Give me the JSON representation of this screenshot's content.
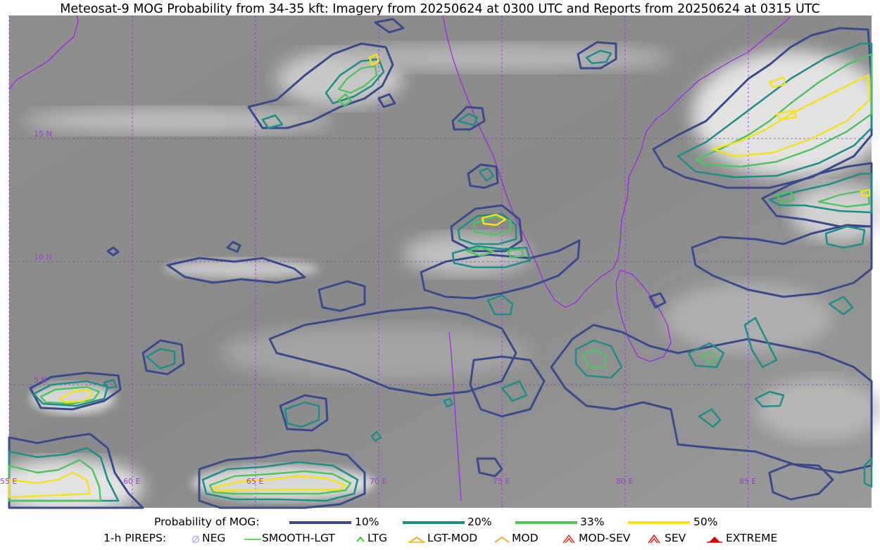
{
  "title": "Meteosat-9 MOG Probability from 34-35 kft: Imagery from 20250624 at 0300 UTC and Reports from 20250624 at 0315 UTC",
  "map": {
    "lat_labels": [
      "15 N",
      "10 N",
      "5 N"
    ],
    "lon_labels": [
      "55 E",
      "60 E",
      "65 E",
      "70 E",
      "75 E",
      "80 E",
      "85 E"
    ],
    "gridline_color": "#9b30d9",
    "coastline_color": "#a020f0"
  },
  "legend": {
    "probability_label": "Probability of MOG:",
    "levels": [
      {
        "label": "10%",
        "color": "#3b4a8c"
      },
      {
        "label": "20%",
        "color": "#1f8f88"
      },
      {
        "label": "33%",
        "color": "#4ec45f"
      },
      {
        "label": "50%",
        "color": "#f5e21a"
      }
    ],
    "pireps_label": "1-h PIREPS:",
    "pireps": [
      {
        "label": "NEG",
        "icon": "neg-icon",
        "color": "#b9b4f0"
      },
      {
        "label": "SMOOTH-LGT",
        "icon": "smooth-lgt-icon",
        "color": "#33cc33"
      },
      {
        "label": "LTG",
        "icon": "ltg-icon",
        "color": "#22cc22"
      },
      {
        "label": "LGT-MOD",
        "icon": "lgt-mod-icon",
        "color": "#f0b000"
      },
      {
        "label": "MOD",
        "icon": "mod-icon",
        "color": "#f5a623"
      },
      {
        "label": "MOD-SEV",
        "icon": "mod-sev-icon",
        "color": "#e83030"
      },
      {
        "label": "SEV",
        "icon": "sev-icon",
        "color": "#e02020"
      },
      {
        "label": "EXTREME",
        "icon": "extreme-icon",
        "color": "#e00000"
      }
    ]
  }
}
